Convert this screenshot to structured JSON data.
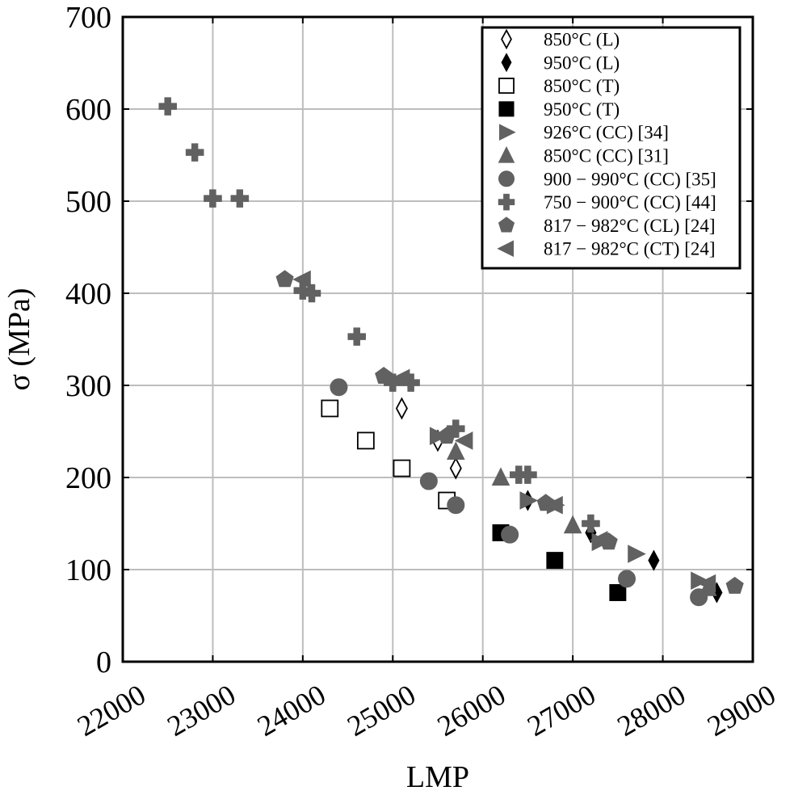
{
  "chart_data": {
    "type": "scatter",
    "title": "",
    "xlabel": "LMP",
    "ylabel": "σ (MPa)",
    "xlim": [
      22000,
      29000
    ],
    "ylim": [
      0,
      700
    ],
    "x_ticks": [
      22000,
      23000,
      24000,
      25000,
      26000,
      27000,
      28000,
      29000
    ],
    "y_ticks": [
      0,
      100,
      200,
      300,
      400,
      500,
      600,
      700
    ],
    "grid": true,
    "legend_position": "top-right",
    "colors": {
      "gray": "#616161",
      "black": "#000000",
      "grid": "#bdbdbd",
      "open_fill": "#ffffff"
    },
    "series": [
      {
        "name": "850°C (L)",
        "marker": "diamond-open",
        "points": [
          [
            25100,
            275
          ],
          [
            25500,
            240
          ],
          [
            25700,
            210
          ]
        ]
      },
      {
        "name": "950°C (L)",
        "marker": "diamond-filled",
        "points": [
          [
            26500,
            175
          ],
          [
            27200,
            140
          ],
          [
            27900,
            110
          ],
          [
            28600,
            75
          ]
        ]
      },
      {
        "name": "850°C (T)",
        "marker": "square-open",
        "points": [
          [
            24300,
            275
          ],
          [
            24700,
            240
          ],
          [
            25100,
            210
          ],
          [
            25600,
            175
          ]
        ]
      },
      {
        "name": "950°C (T)",
        "marker": "square-filled",
        "points": [
          [
            26200,
            140
          ],
          [
            26800,
            110
          ],
          [
            27500,
            75
          ]
        ]
      },
      {
        "name": "926°C (CC) [34]",
        "marker": "triangle-right",
        "points": [
          [
            25500,
            245
          ],
          [
            26500,
            175
          ],
          [
            26800,
            170
          ],
          [
            27300,
            130
          ],
          [
            27700,
            117
          ],
          [
            28400,
            88
          ]
        ]
      },
      {
        "name": "850°C (CC) [31]",
        "marker": "triangle-up",
        "points": [
          [
            25700,
            228
          ],
          [
            26200,
            200
          ],
          [
            27000,
            148
          ],
          [
            28500,
            80
          ]
        ]
      },
      {
        "name": "900 − 990°C (CC) [35]",
        "marker": "circle",
        "points": [
          [
            24400,
            298
          ],
          [
            25400,
            196
          ],
          [
            25700,
            170
          ],
          [
            26300,
            138
          ],
          [
            27600,
            90
          ],
          [
            28400,
            70
          ]
        ]
      },
      {
        "name": "750 − 900°C (CC) [44]",
        "marker": "plus",
        "points": [
          [
            22500,
            603
          ],
          [
            22800,
            553
          ],
          [
            23000,
            503
          ],
          [
            23300,
            503
          ],
          [
            24000,
            403
          ],
          [
            24100,
            400
          ],
          [
            24600,
            353
          ],
          [
            25000,
            303
          ],
          [
            25200,
            303
          ],
          [
            25700,
            253
          ],
          [
            26400,
            203
          ],
          [
            26500,
            203
          ],
          [
            27200,
            150
          ]
        ]
      },
      {
        "name": "817 − 982°C (CL) [24]",
        "marker": "pentagon",
        "points": [
          [
            23800,
            415
          ],
          [
            24900,
            310
          ],
          [
            25600,
            245
          ],
          [
            26700,
            172
          ],
          [
            27400,
            130
          ],
          [
            28800,
            82
          ]
        ]
      },
      {
        "name": "817 − 982°C (CT) [24]",
        "marker": "triangle-left",
        "points": [
          [
            24000,
            415
          ],
          [
            25100,
            308
          ],
          [
            25800,
            240
          ],
          [
            26800,
            170
          ],
          [
            27300,
            132
          ],
          [
            28500,
            85
          ]
        ]
      }
    ]
  }
}
